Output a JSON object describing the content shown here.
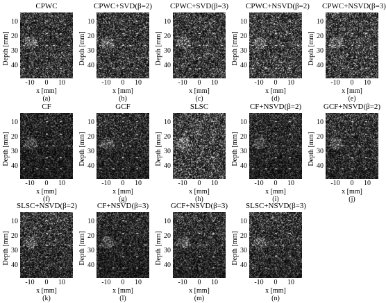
{
  "figure": {
    "y_axis_label": "Depth [mm]",
    "x_axis_label": "x [mm]",
    "y_ticks": [
      "10",
      "20",
      "30",
      "40"
    ],
    "x_ticks": [
      "-10",
      "0",
      "10"
    ],
    "colormap": "grayscale",
    "panels": [
      {
        "title": "CPWC",
        "caption": "(a)"
      },
      {
        "title": "CPWC+SVD(β=2)",
        "caption": "(b)"
      },
      {
        "title": "CPWC+SVD(β=3)",
        "caption": "(c)"
      },
      {
        "title": "CPWC+NSVD(β=2)",
        "caption": "(d)"
      },
      {
        "title": "CPWC+NSVD(β=3)",
        "caption": "(e)"
      },
      {
        "title": "CF",
        "caption": "(f)"
      },
      {
        "title": "GCF",
        "caption": "(g)"
      },
      {
        "title": "SLSC",
        "caption": "(h)"
      },
      {
        "title": "CF+NSVD(β=2)",
        "caption": "(i)"
      },
      {
        "title": "GCF+NSVD(β=2)",
        "caption": "(j)"
      },
      {
        "title": "SLSC+NSVD(β=2)",
        "caption": "(k)"
      },
      {
        "title": "CF+NSVD(β=3)",
        "caption": "(l)"
      },
      {
        "title": "GCF+NSVD(β=3)",
        "caption": "(m)"
      },
      {
        "title": "SLSC+NSVD(β=3)",
        "caption": "(n)"
      }
    ]
  }
}
